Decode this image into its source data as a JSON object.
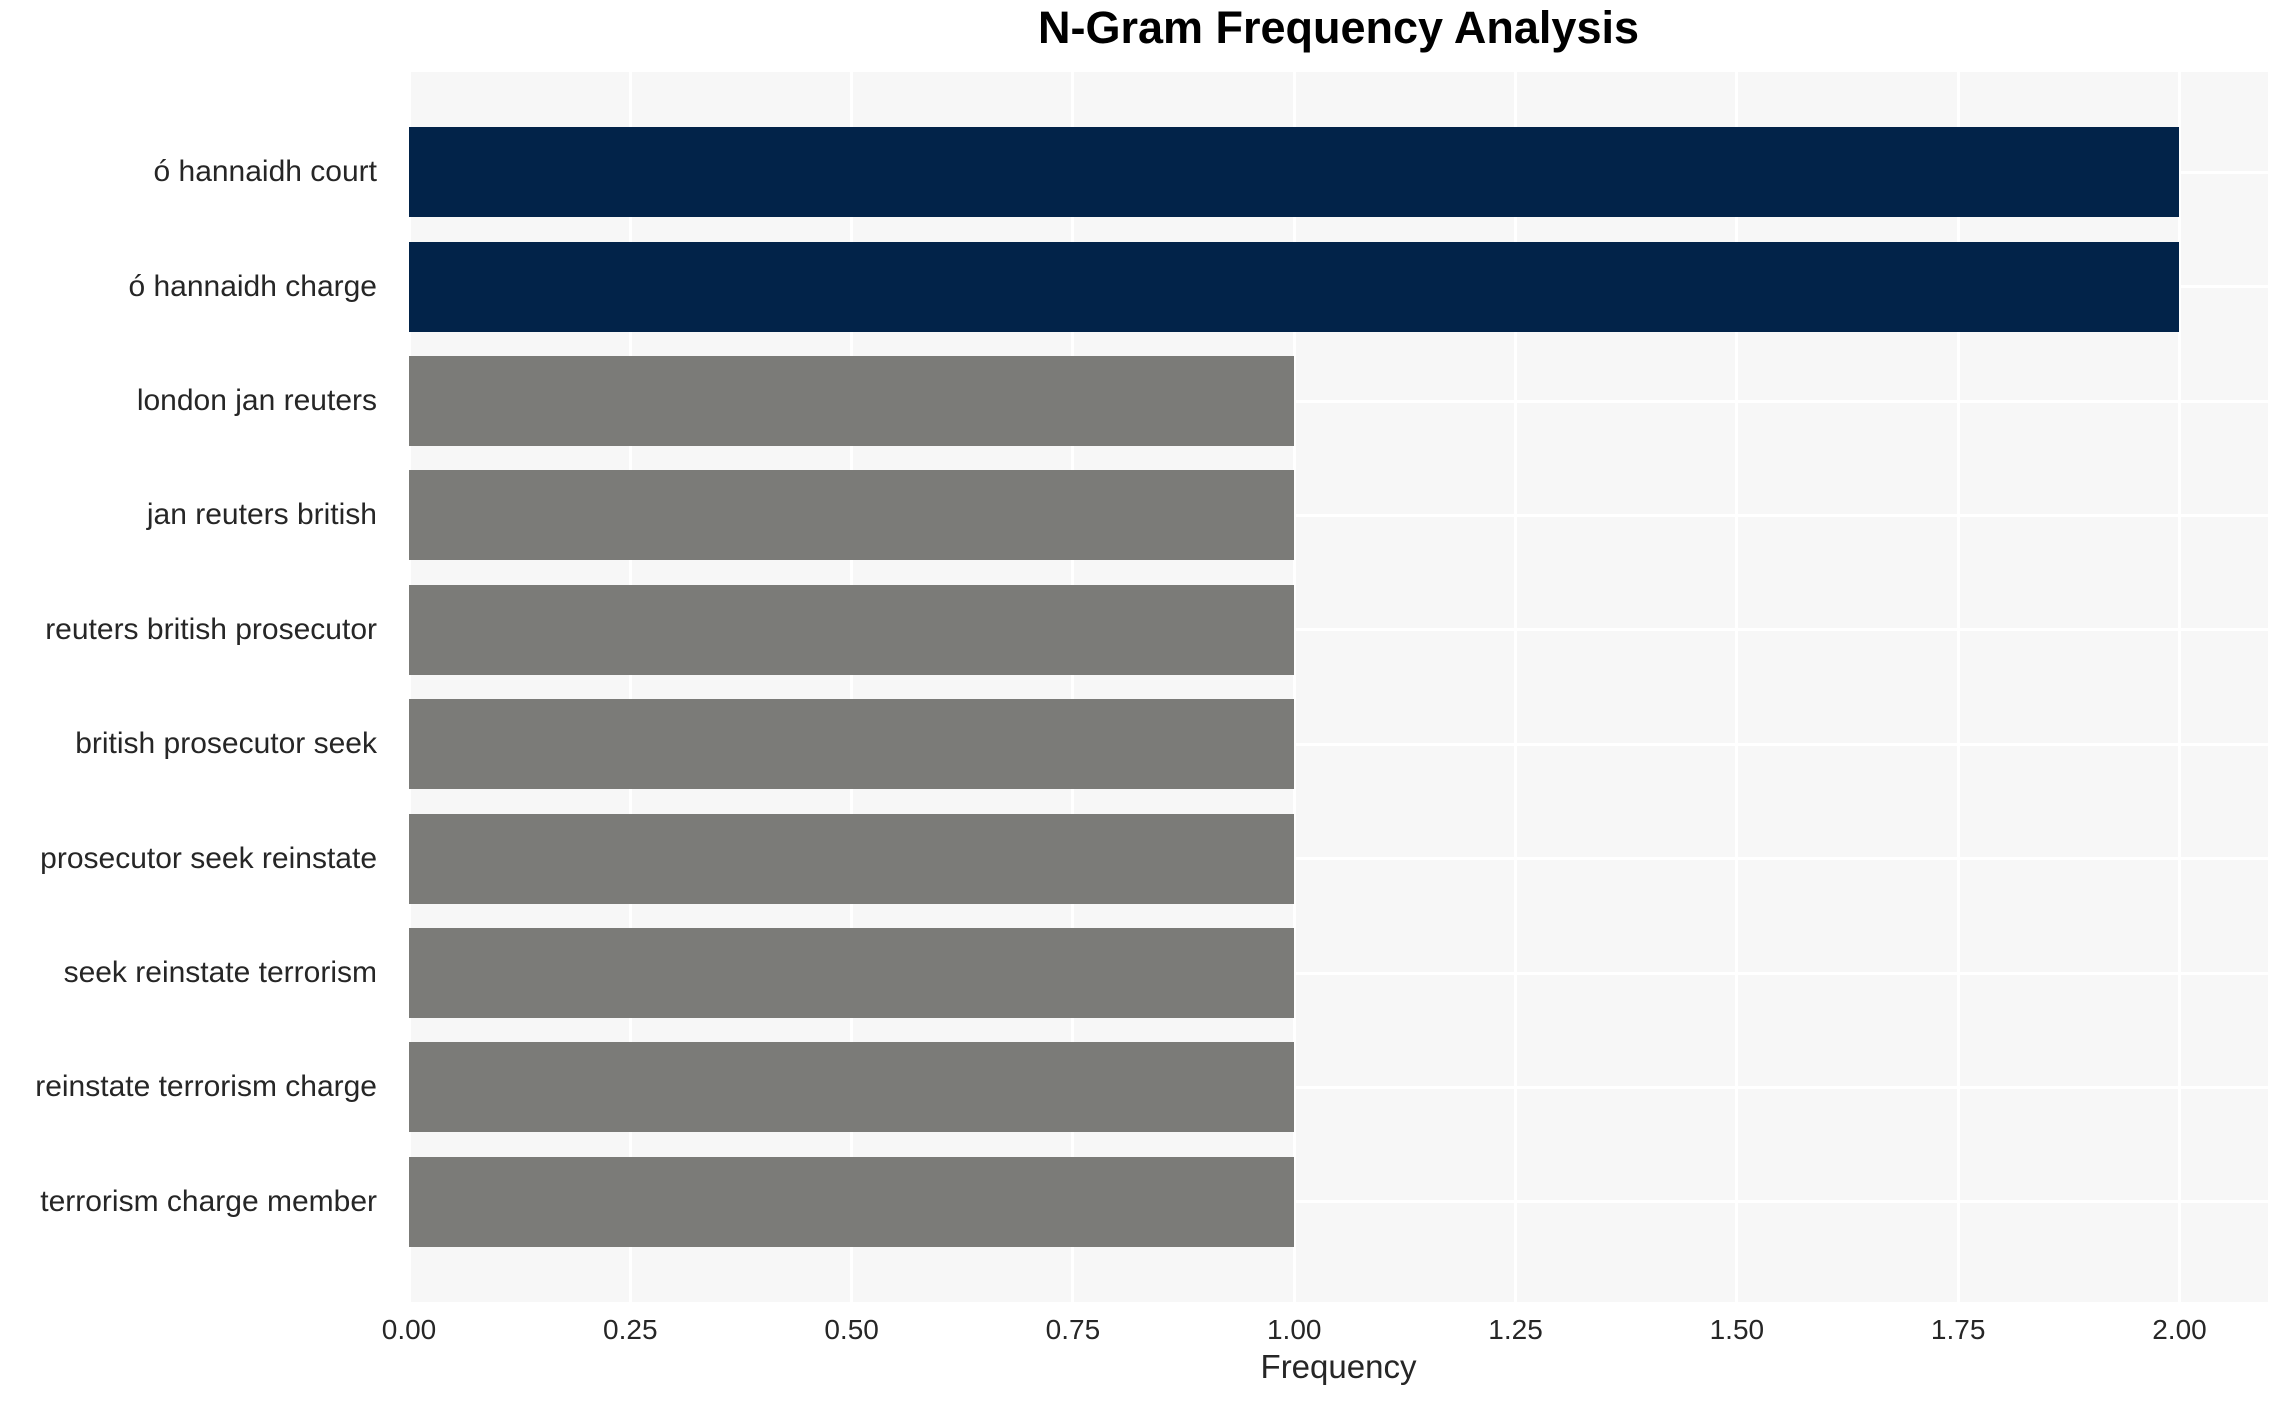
{
  "title": "N-Gram Frequency Analysis",
  "chart_data": {
    "type": "bar",
    "orientation": "horizontal",
    "title": "N-Gram Frequency Analysis",
    "xlabel": "Frequency",
    "ylabel": "",
    "categories": [
      "ó hannaidh court",
      "ó hannaidh charge",
      "london jan reuters",
      "jan reuters british",
      "reuters british prosecutor",
      "british prosecutor seek",
      "prosecutor seek reinstate",
      "seek reinstate terrorism",
      "reinstate terrorism charge",
      "terrorism charge member"
    ],
    "values": [
      2,
      2,
      1,
      1,
      1,
      1,
      1,
      1,
      1,
      1
    ],
    "bar_colors": [
      "#022349",
      "#022349",
      "#7B7B78",
      "#7B7B78",
      "#7B7B78",
      "#7B7B78",
      "#7B7B78",
      "#7B7B78",
      "#7B7B78",
      "#7B7B78"
    ],
    "xlim": [
      0,
      2.1
    ],
    "xticks": [
      0,
      0.25,
      0.5,
      0.75,
      1,
      1.25,
      1.5,
      1.75,
      2
    ],
    "xtick_labels": [
      "0.00",
      "0.25",
      "0.50",
      "0.75",
      "1.00",
      "1.25",
      "1.50",
      "1.75",
      "2.00"
    ],
    "grid": true,
    "legend_position": "none",
    "colors": {
      "highlight_bar": "#022349",
      "default_bar": "#7B7B78",
      "plot_background": "#F7F7F7",
      "gridline": "#FFFFFF",
      "figure_background": "#FFFFFF",
      "tick_text": "#262626",
      "title_text": "#000000"
    }
  }
}
